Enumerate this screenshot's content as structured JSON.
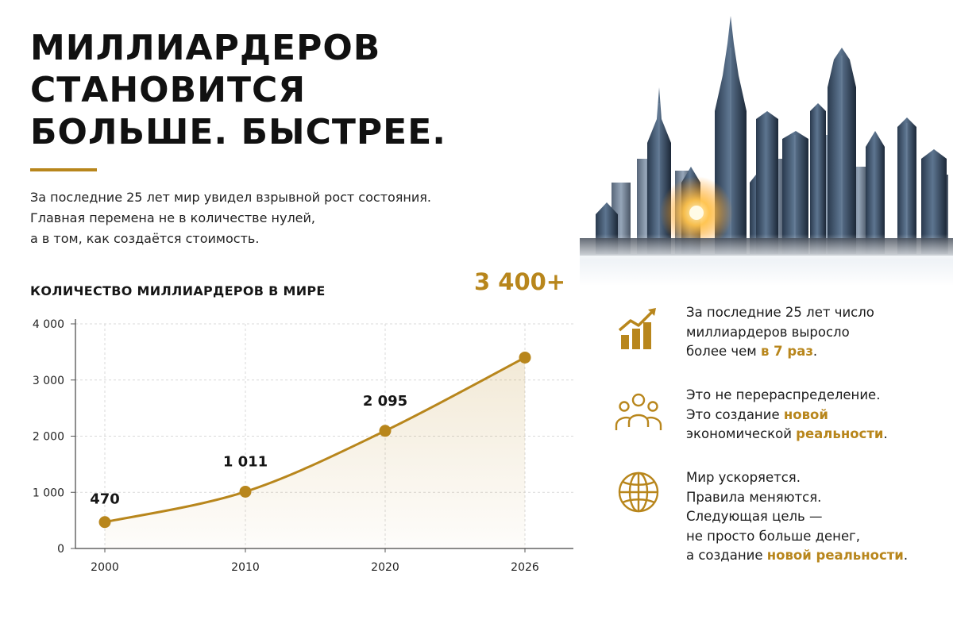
{
  "title": {
    "line1": "МИЛЛИАРДЕРОВ",
    "line2": "СТАНОВИТСЯ",
    "line3": "БОЛЬШЕ. БЫСТРЕЕ."
  },
  "intro": {
    "line1": "За последние 25 лет мир увидел взрывной рост состояния.",
    "line2": "Главная перемена не в количестве нулей,",
    "line3": "а в том, как создаётся стоимость."
  },
  "colors": {
    "accent": "#B8861C",
    "text": "#161616",
    "grid": "#d9d9d9"
  },
  "chart_data": {
    "type": "line",
    "title": "КОЛИЧЕСТВО МИЛЛИАРДЕРОВ В МИРЕ",
    "x": [
      "2000",
      "2010",
      "2020",
      "2026"
    ],
    "series": [
      {
        "values": [
          470,
          1011,
          2095,
          3400
        ]
      }
    ],
    "data_labels": [
      "470",
      "1 011",
      "2 095"
    ],
    "callout": "3 400+",
    "y_ticks": [
      0,
      1000,
      2000,
      3000,
      4000
    ],
    "y_tick_labels": [
      "0",
      "1 000",
      "2 000",
      "3 000",
      "4 000"
    ],
    "ylim": [
      0,
      4000
    ],
    "grid": true,
    "area_fill": true
  },
  "facts": [
    {
      "icon": "growth-chart-icon",
      "line1": "За последние 25 лет число",
      "line2": "миллиардеров выросло",
      "line3_pre": "более чем ",
      "line3_hl": "в 7 раз",
      "line3_post": "."
    },
    {
      "icon": "people-group-icon",
      "line1": "Это не перераспределение.",
      "line2_pre": "Это создание ",
      "line2_hl": "новой",
      "line3_pre": "экономической ",
      "line3_hl": "реальности",
      "line3_post": "."
    },
    {
      "icon": "globe-icon",
      "line1": "Мир ускоряется.",
      "line2": "Правила меняются.",
      "line3": "Следующая цель —",
      "line4": "не просто больше денег,",
      "line5_pre": "а создание ",
      "line5_hl": "новой реальности",
      "line5_post": "."
    }
  ]
}
